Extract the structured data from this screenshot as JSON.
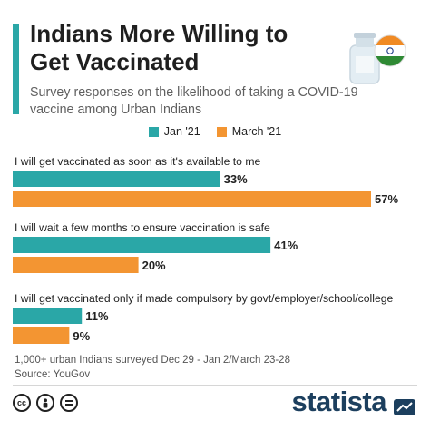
{
  "title": "Indians More Willing to Get Vaccinated",
  "subtitle": "Survey responses on the likelihood of taking a COVID-19 vaccine among Urban Indians",
  "footnote": [
    "1,000+ urban Indians surveyed Dec 29 - Jan 2/March 23-28",
    "Source: YouGov"
  ],
  "brand": "statista",
  "colors": {
    "jan": "#2aa7a7",
    "march": "#f39532",
    "accent": "#2aa7a7",
    "brand": "#1c3f5e"
  },
  "icons": [
    "cc-icon",
    "person-icon",
    "equals-icon",
    "india-flag-icon",
    "vaccine-bottle-icon"
  ],
  "chart_data": {
    "type": "bar",
    "orientation": "horizontal",
    "categories": [
      "I will get vaccinated as soon as it's available to me",
      "I will wait a few months to ensure vaccination is safe",
      "I will get vaccinated only if made compulsory by govt/employer/school/college"
    ],
    "series": [
      {
        "name": "Jan '21",
        "values": [
          33,
          41,
          11
        ],
        "labels": [
          "33%",
          "41%",
          "11%"
        ]
      },
      {
        "name": "March '21",
        "values": [
          57,
          20,
          9
        ],
        "labels": [
          "57%",
          "20%",
          "9%"
        ]
      }
    ],
    "xlim": [
      0,
      57
    ],
    "legend": "top"
  }
}
